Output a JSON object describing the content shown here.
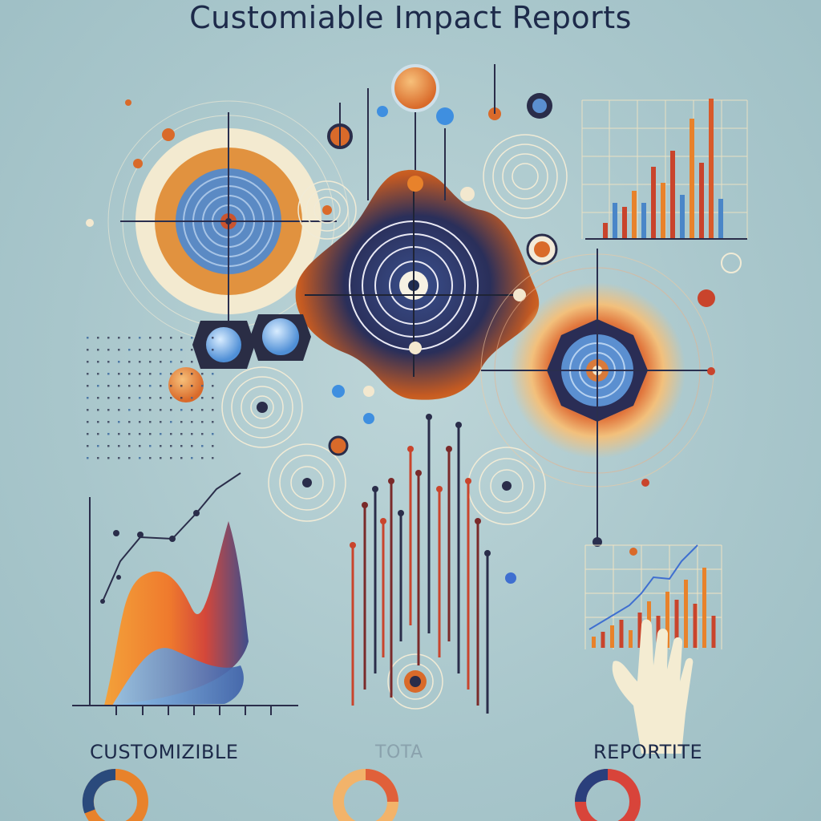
{
  "title": "Customiable Impact Reports",
  "labels": [
    "CUSTOMIZIBLE",
    "TOTA",
    "REPORTITE"
  ],
  "palette": {
    "navy": "#1f2d52",
    "orange": "#e8822b",
    "red": "#c9442c",
    "blue": "#4a86c8",
    "cream": "#f4ecd2"
  }
}
